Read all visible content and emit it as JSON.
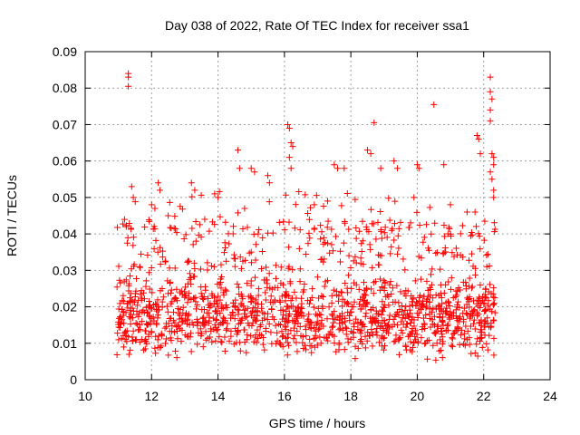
{
  "chart_data": {
    "type": "scatter",
    "title": "Day 038 of 2022, Rate Of TEC Index for receiver ssa1",
    "xlabel": "GPS time / hours",
    "ylabel": "ROTI / TECUs",
    "xlim": [
      10,
      24
    ],
    "ylim": [
      0,
      0.09
    ],
    "grid": true,
    "marker": "+",
    "color": "#ff0000",
    "x_ticks": [
      "10",
      "12",
      "14",
      "16",
      "18",
      "20",
      "22",
      "24"
    ],
    "y_ticks": [
      "0",
      "0.01",
      "0.02",
      "0.03",
      "0.04",
      "0.05",
      "0.06",
      "0.07",
      "0.08",
      "0.09"
    ],
    "series": [
      {
        "x_range": [
          10.95,
          22.35
        ],
        "typical_range": [
          0.005,
          0.03
        ],
        "points": [
          [
            11.3,
            0.084
          ],
          [
            11.3,
            0.083
          ],
          [
            11.3,
            0.0805
          ],
          [
            11.4,
            0.053
          ],
          [
            11.45,
            0.05
          ],
          [
            12.0,
            0.048
          ],
          [
            12.1,
            0.047
          ],
          [
            12.2,
            0.054
          ],
          [
            12.25,
            0.052
          ],
          [
            13.2,
            0.054
          ],
          [
            13.3,
            0.052
          ],
          [
            13.9,
            0.051
          ],
          [
            14.0,
            0.05
          ],
          [
            14.6,
            0.063
          ],
          [
            14.65,
            0.058
          ],
          [
            15.0,
            0.058
          ],
          [
            15.1,
            0.057
          ],
          [
            15.5,
            0.056
          ],
          [
            15.55,
            0.054
          ],
          [
            16.1,
            0.07
          ],
          [
            16.15,
            0.069
          ],
          [
            16.2,
            0.065
          ],
          [
            16.25,
            0.064
          ],
          [
            16.15,
            0.061
          ],
          [
            16.2,
            0.058
          ],
          [
            17.5,
            0.059
          ],
          [
            17.6,
            0.058
          ],
          [
            17.8,
            0.058
          ],
          [
            18.5,
            0.063
          ],
          [
            18.6,
            0.062
          ],
          [
            18.7,
            0.0705
          ],
          [
            18.9,
            0.058
          ],
          [
            19.3,
            0.06
          ],
          [
            19.4,
            0.058
          ],
          [
            20.0,
            0.059
          ],
          [
            20.05,
            0.058
          ],
          [
            20.5,
            0.0755
          ],
          [
            20.8,
            0.059
          ],
          [
            21.8,
            0.067
          ],
          [
            21.85,
            0.066
          ],
          [
            21.9,
            0.062
          ],
          [
            22.2,
            0.083
          ],
          [
            22.2,
            0.079
          ],
          [
            22.25,
            0.077
          ],
          [
            22.2,
            0.074
          ],
          [
            22.2,
            0.071
          ],
          [
            22.25,
            0.062
          ],
          [
            22.3,
            0.061
          ],
          [
            22.3,
            0.059
          ],
          [
            22.2,
            0.057
          ],
          [
            22.25,
            0.055
          ],
          [
            22.3,
            0.052
          ],
          [
            22.3,
            0.05
          ],
          [
            12.5,
            0.045
          ],
          [
            13.6,
            0.044
          ],
          [
            14.8,
            0.047
          ],
          [
            16.9,
            0.048
          ],
          [
            17.3,
            0.049
          ],
          [
            19.9,
            0.05
          ],
          [
            21.0,
            0.048
          ],
          [
            21.5,
            0.046
          ]
        ]
      }
    ]
  }
}
